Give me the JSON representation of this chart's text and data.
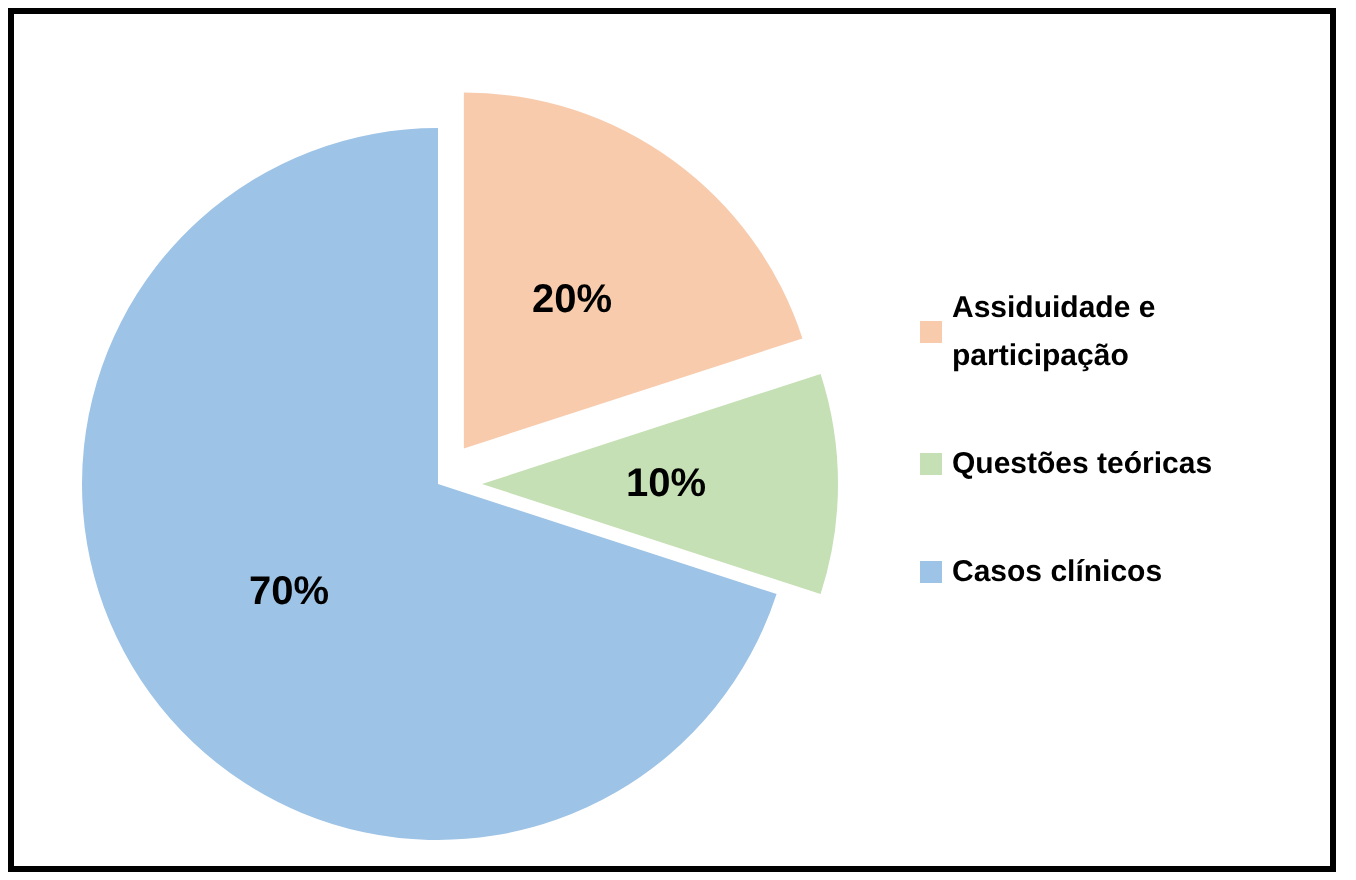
{
  "chart_data": {
    "type": "pie",
    "categories": [
      "Assiduidade e participação",
      "Questões teóricas",
      "Casos clínicos"
    ],
    "values": [
      20,
      10,
      70
    ],
    "colors": [
      "#f8cbad",
      "#c5e0b4",
      "#9dc3e6"
    ],
    "value_labels": [
      "20%",
      "10%",
      "70%"
    ],
    "legend": "right"
  }
}
